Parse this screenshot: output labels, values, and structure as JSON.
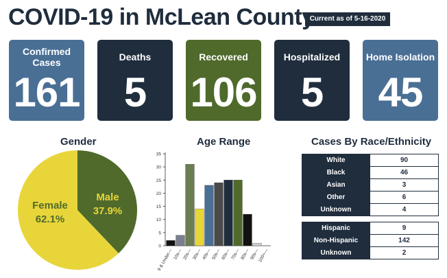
{
  "header": {
    "title": "COVID-19 in McLean County",
    "as_of": "Current as of 5-16-2020"
  },
  "stats": [
    {
      "label": "Confirmed Cases",
      "value": "161",
      "color": "#4a6f95"
    },
    {
      "label": "Deaths",
      "value": "5",
      "color": "#1f2d3d"
    },
    {
      "label": "Recovered",
      "value": "106",
      "color": "#4f6a2b"
    },
    {
      "label": "Hospitalized",
      "value": "5",
      "color": "#1f2d3d"
    },
    {
      "label": "Home Isolation",
      "value": "45",
      "color": "#4a6f95"
    }
  ],
  "gender": {
    "title": "Gender",
    "female_label": "Female",
    "female_pct": "62.1%",
    "male_label": "Male",
    "male_pct": "37.9%"
  },
  "age": {
    "title": "Age Range"
  },
  "race": {
    "title": "Cases By Race/Ethnicity",
    "race_rows": [
      {
        "label": "White",
        "value": "90"
      },
      {
        "label": "Black",
        "value": "46"
      },
      {
        "label": "Asian",
        "value": "3"
      },
      {
        "label": "Other",
        "value": "6"
      },
      {
        "label": "Unknown",
        "value": "4"
      }
    ],
    "ethnicity_rows": [
      {
        "label": "Hispanic",
        "value": "9"
      },
      {
        "label": "Non-Hispanic",
        "value": "142"
      },
      {
        "label": "Unknown",
        "value": "2"
      }
    ]
  },
  "chart_data": [
    {
      "type": "pie",
      "title": "Gender",
      "categories": [
        "Female",
        "Male"
      ],
      "values": [
        62.1,
        37.9
      ],
      "colors": [
        "#e8d53a",
        "#4f6a2b"
      ]
    },
    {
      "type": "bar",
      "title": "Age Range",
      "categories": [
        "9 & Under",
        "10s",
        "20s",
        "30s",
        "40s",
        "50s",
        "60s",
        "70s",
        "80s",
        "90s",
        "100+"
      ],
      "values": [
        2,
        4,
        31,
        14,
        23,
        24,
        25,
        25,
        12,
        1,
        0
      ],
      "colors": [
        "#111111",
        "#7b7f8e",
        "#6b7d52",
        "#e8d53a",
        "#4a6f95",
        "#4a4a4a",
        "#1f2d3d",
        "#4f6a2b",
        "#111111",
        "#d0d0d0",
        "#d0d0d0"
      ],
      "ylim": [
        0,
        35
      ],
      "yticks": [
        0,
        5,
        10,
        15,
        20,
        25,
        30,
        35
      ],
      "grid": false
    }
  ]
}
